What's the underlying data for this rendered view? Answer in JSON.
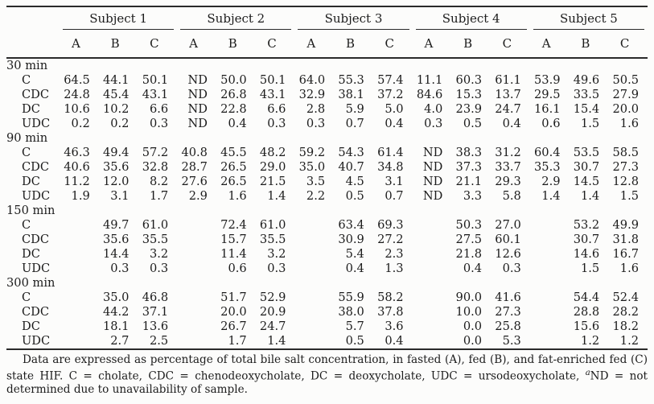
{
  "table": {
    "subjects": [
      "Subject 1",
      "Subject 2",
      "Subject 3",
      "Subject 4",
      "Subject 5"
    ],
    "sub_columns": [
      "A",
      "B",
      "C"
    ],
    "sections": [
      {
        "time": "30 min",
        "rows": [
          {
            "label": "C",
            "values": [
              "64.5",
              "44.1",
              "50.1",
              "ND",
              "50.0",
              "50.1",
              "64.0",
              "55.3",
              "57.4",
              "11.1",
              "60.3",
              "61.1",
              "53.9",
              "49.6",
              "50.5"
            ]
          },
          {
            "label": "CDC",
            "values": [
              "24.8",
              "45.4",
              "43.1",
              "ND",
              "26.8",
              "43.1",
              "32.9",
              "38.1",
              "37.2",
              "84.6",
              "15.3",
              "13.7",
              "29.5",
              "33.5",
              "27.9"
            ]
          },
          {
            "label": "DC",
            "values": [
              "10.6",
              "10.2",
              "6.6",
              "ND",
              "22.8",
              "6.6",
              "2.8",
              "5.9",
              "5.0",
              "4.0",
              "23.9",
              "24.7",
              "16.1",
              "15.4",
              "20.0"
            ]
          },
          {
            "label": "UDC",
            "values": [
              "0.2",
              "0.2",
              "0.3",
              "ND",
              "0.4",
              "0.3",
              "0.3",
              "0.7",
              "0.4",
              "0.3",
              "0.5",
              "0.4",
              "0.6",
              "1.5",
              "1.6"
            ]
          }
        ]
      },
      {
        "time": "90 min",
        "rows": [
          {
            "label": "C",
            "values": [
              "46.3",
              "49.4",
              "57.2",
              "40.8",
              "45.5",
              "48.2",
              "59.2",
              "54.3",
              "61.4",
              "ND",
              "38.3",
              "31.2",
              "60.4",
              "53.5",
              "58.5"
            ]
          },
          {
            "label": "CDC",
            "values": [
              "40.6",
              "35.6",
              "32.8",
              "28.7",
              "26.5",
              "29.0",
              "35.0",
              "40.7",
              "34.8",
              "ND",
              "37.3",
              "33.7",
              "35.3",
              "30.7",
              "27.3"
            ]
          },
          {
            "label": "DC",
            "values": [
              "11.2",
              "12.0",
              "8.2",
              "27.6",
              "26.5",
              "21.5",
              "3.5",
              "4.5",
              "3.1",
              "ND",
              "21.1",
              "29.3",
              "2.9",
              "14.5",
              "12.8"
            ]
          },
          {
            "label": "UDC",
            "values": [
              "1.9",
              "3.1",
              "1.7",
              "2.9",
              "1.6",
              "1.4",
              "2.2",
              "0.5",
              "0.7",
              "ND",
              "3.3",
              "5.8",
              "1.4",
              "1.4",
              "1.5"
            ]
          }
        ]
      },
      {
        "time": "150 min",
        "rows": [
          {
            "label": "C",
            "values": [
              "",
              "49.7",
              "61.0",
              "",
              "72.4",
              "61.0",
              "",
              "63.4",
              "69.3",
              "",
              "50.3",
              "27.0",
              "",
              "53.2",
              "49.9"
            ]
          },
          {
            "label": "CDC",
            "values": [
              "",
              "35.6",
              "35.5",
              "",
              "15.7",
              "35.5",
              "",
              "30.9",
              "27.2",
              "",
              "27.5",
              "60.1",
              "",
              "30.7",
              "31.8"
            ]
          },
          {
            "label": "DC",
            "values": [
              "",
              "14.4",
              "3.2",
              "",
              "11.4",
              "3.2",
              "",
              "5.4",
              "2.3",
              "",
              "21.8",
              "12.6",
              "",
              "14.6",
              "16.7"
            ]
          },
          {
            "label": "UDC",
            "values": [
              "",
              "0.3",
              "0.3",
              "",
              "0.6",
              "0.3",
              "",
              "0.4",
              "1.3",
              "",
              "0.4",
              "0.3",
              "",
              "1.5",
              "1.6"
            ]
          }
        ]
      },
      {
        "time": "300 min",
        "rows": [
          {
            "label": "C",
            "values": [
              "",
              "35.0",
              "46.8",
              "",
              "51.7",
              "52.9",
              "",
              "55.9",
              "58.2",
              "",
              "90.0",
              "41.6",
              "",
              "54.4",
              "52.4"
            ]
          },
          {
            "label": "CDC",
            "values": [
              "",
              "44.2",
              "37.1",
              "",
              "20.0",
              "20.9",
              "",
              "38.0",
              "37.8",
              "",
              "10.0",
              "27.3",
              "",
              "28.8",
              "28.2"
            ]
          },
          {
            "label": "DC",
            "values": [
              "",
              "18.1",
              "13.6",
              "",
              "26.7",
              "24.7",
              "",
              "5.7",
              "3.6",
              "",
              "0.0",
              "25.8",
              "",
              "15.6",
              "18.2"
            ]
          },
          {
            "label": "UDC",
            "values": [
              "",
              "2.7",
              "2.5",
              "",
              "1.7",
              "1.4",
              "",
              "0.5",
              "0.4",
              "",
              "0.0",
              "5.3",
              "",
              "1.2",
              "1.2"
            ]
          }
        ]
      }
    ]
  },
  "footnote": {
    "part1": "Data are expressed as percentage of total bile salt concentration, in fasted (A), fed (B), and fat-enriched fed (C) state HIF. C = cholate, CDC = chenodeoxycholate, DC = deoxycholate, UDC = ursodeoxycholate, ",
    "sup": "a",
    "part2": "ND = not determined due to unavailability of sample."
  },
  "colors": {
    "text": "#1c1c1c",
    "rule": "#2a2a2a",
    "background": "#fcfcfb"
  }
}
